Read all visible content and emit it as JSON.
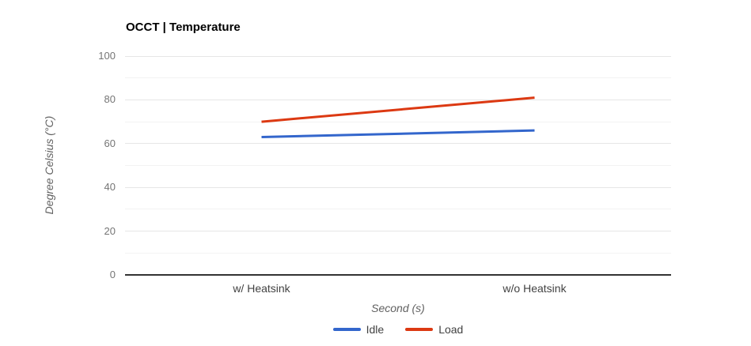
{
  "chart_data": {
    "type": "line",
    "title": "OCCT | Temperature",
    "xlabel": "Second (s)",
    "ylabel": "Degree Celsius (°C)",
    "categories": [
      "w/ Heatsink",
      "w/o Heatsink"
    ],
    "series": [
      {
        "name": "Idle",
        "color": "#3366CC",
        "values": [
          63,
          66
        ]
      },
      {
        "name": "Load",
        "color": "#DC3912",
        "values": [
          70,
          81
        ]
      }
    ],
    "ylim": [
      0,
      100
    ],
    "y_major_ticks": [
      0,
      20,
      40,
      60,
      80,
      100
    ],
    "y_minor_ticks": [
      10,
      30,
      50,
      70,
      90
    ],
    "grid": true,
    "legend_position": "bottom",
    "line_width": 3
  },
  "theme": {
    "background": "#ffffff",
    "title_color": "#000000",
    "tick_label_color": "#757575",
    "category_label_color": "#424242",
    "axis_title_color": "#616161",
    "legend_label_color": "#424242",
    "major_grid_color": "#e6e6e6",
    "minor_grid_color": "#f3f3f3",
    "baseline_color": "#333333"
  }
}
